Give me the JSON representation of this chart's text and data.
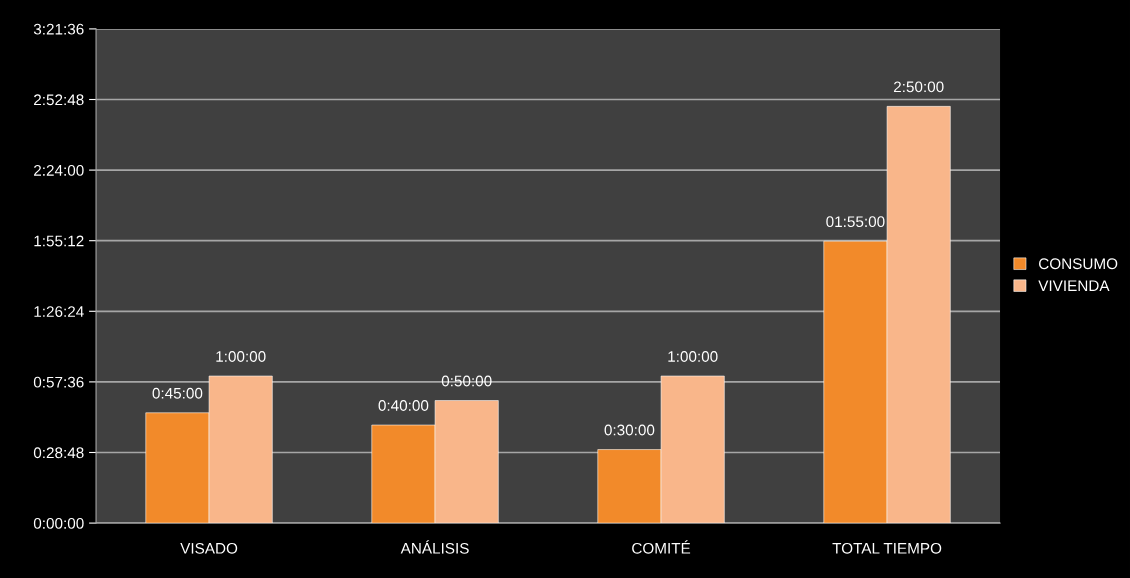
{
  "chart_data": {
    "type": "bar",
    "categories": [
      "VISADO",
      "ANÁLISIS",
      "COMITÉ",
      "TOTAL TIEMPO"
    ],
    "series": [
      {
        "name": "CONSUMO",
        "color": "#f28a2a",
        "values": [
          45,
          40,
          30,
          115
        ],
        "value_labels": [
          "0:45:00",
          "0:40:00",
          "0:30:00",
          "01:55:00"
        ]
      },
      {
        "name": "VIVIENDA",
        "color": "#f9b68a",
        "values": [
          60,
          50,
          60,
          170
        ],
        "value_labels": [
          "1:00:00",
          "0:50:00",
          "1:00:00",
          "2:50:00"
        ]
      }
    ],
    "ylim": [
      0,
      201.6
    ],
    "yticks": [
      {
        "value": 0,
        "label": "0:00:00"
      },
      {
        "value": 28.8,
        "label": "0:28:48"
      },
      {
        "value": 57.6,
        "label": "0:57:36"
      },
      {
        "value": 86.4,
        "label": "1:26:24"
      },
      {
        "value": 115.2,
        "label": "1:55:12"
      },
      {
        "value": 144,
        "label": "2:24:00"
      },
      {
        "value": 172.8,
        "label": "2:52:48"
      },
      {
        "value": 201.6,
        "label": "3:21:36"
      }
    ],
    "grid": "y",
    "legend": "right"
  }
}
